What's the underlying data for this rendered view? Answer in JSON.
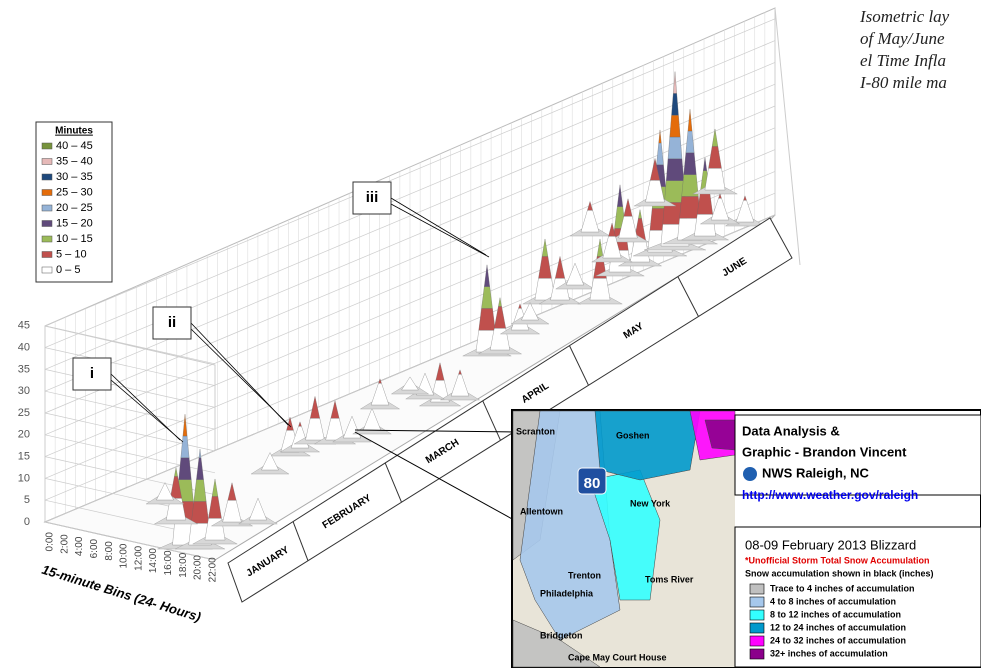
{
  "caption": [
    "Isometric lay",
    "of May/June",
    "el Time Infla",
    "I-80 mile ma"
  ],
  "legend": {
    "title": "Minutes",
    "items": [
      {
        "label": "40 – 45",
        "color": "#77933c"
      },
      {
        "label": "35 – 40",
        "color": "#e6b9b8"
      },
      {
        "label": "30 – 35",
        "color": "#1f497d"
      },
      {
        "label": "25 – 30",
        "color": "#e46c0a"
      },
      {
        "label": "20 – 25",
        "color": "#95b3d7"
      },
      {
        "label": "15 – 20",
        "color": "#604a7b"
      },
      {
        "label": "10 – 15",
        "color": "#9bbb59"
      },
      {
        "label": "5 – 10",
        "color": "#c0504d"
      },
      {
        "label": "0 – 5",
        "color": "#ffffff"
      }
    ]
  },
  "y_axis": {
    "ticks": [
      0,
      5,
      10,
      15,
      20,
      25,
      30,
      35,
      40,
      45
    ]
  },
  "x_axis": {
    "title": "15-minute Bins (24- Hours)",
    "ticks": [
      "0:00",
      "2:00",
      "4:00",
      "6:00",
      "8:00",
      "10:00",
      "12:00",
      "14:00",
      "16:00",
      "18:00",
      "20:00",
      "22:00"
    ]
  },
  "months": [
    "JANUARY",
    "FEBRUARY",
    "MARCH",
    "APRIL",
    "MAY",
    "JUNE"
  ],
  "callouts": [
    "i",
    "ii",
    "iii"
  ],
  "inset": {
    "credit": [
      "Data Analysis &",
      "Graphic - Brandon Vincent",
      "NWS Raleigh, NC"
    ],
    "url": "http://www.weather.gov/raleigh",
    "title": "08-09 February 2013 Blizzard",
    "subtitle": "*Unofficial Storm Total Snow Accumulation",
    "note": "Snow accumulation shown in black (inches)",
    "legend": [
      {
        "label": "Trace to 4 inches of accumulation",
        "color": "#c0c0c0"
      },
      {
        "label": "4 to 8 inches of accumulation",
        "color": "#a6c8ec"
      },
      {
        "label": "8 to 12 inches of accumulation",
        "color": "#33ffff"
      },
      {
        "label": "12 to 24 inches of accumulation",
        "color": "#0099cc"
      },
      {
        "label": "24 to 32 inches of accumulation",
        "color": "#ff00ff"
      },
      {
        "label": "32+ inches of accumulation",
        "color": "#8b008b"
      }
    ],
    "places": [
      "Scranton",
      "Goshen",
      "Allentown",
      "Trenton",
      "Philadelphia",
      "Toms River",
      "New York",
      "Bridgeton",
      "Cape May Court House"
    ],
    "route": "80"
  }
}
